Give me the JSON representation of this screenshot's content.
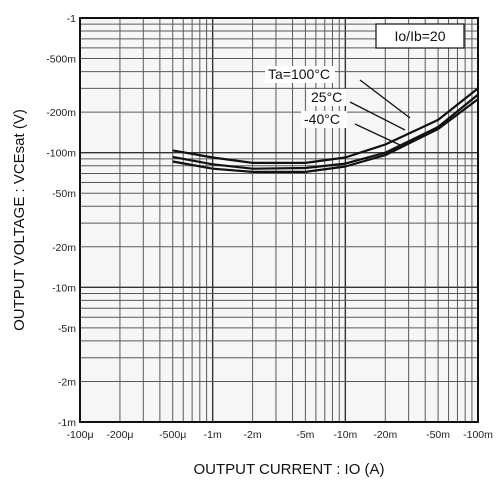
{
  "chart_data": {
    "type": "line",
    "xlabel": "OUTPUT CURRENT : IO (A)",
    "ylabel": "OUTPUT VOLTAGE : VCEsat (V)",
    "x_scale": "log",
    "y_scale": "log",
    "x_direction": "increasingly negative to the right",
    "y_direction": "increasingly negative downward (top = -1)",
    "xlim": [
      -0.0001,
      -0.1
    ],
    "ylim": [
      -0.001,
      -1
    ],
    "grid": true,
    "legend_position": "top-right",
    "annotation": "Io/Ib=20",
    "x_ticks": [
      {
        "value": -0.0001,
        "label": "-100μ"
      },
      {
        "value": -0.0002,
        "label": "-200μ"
      },
      {
        "value": -0.0005,
        "label": "-500μ"
      },
      {
        "value": -0.001,
        "label": "-1m"
      },
      {
        "value": -0.002,
        "label": "-2m"
      },
      {
        "value": -0.005,
        "label": "-5m"
      },
      {
        "value": -0.01,
        "label": "-10m"
      },
      {
        "value": -0.02,
        "label": "-20m"
      },
      {
        "value": -0.05,
        "label": "-50m"
      },
      {
        "value": -0.1,
        "label": "-100m"
      }
    ],
    "y_ticks": [
      {
        "value": -1,
        "label": "-1"
      },
      {
        "value": -0.5,
        "label": "-500m"
      },
      {
        "value": -0.2,
        "label": "-200m"
      },
      {
        "value": -0.1,
        "label": "-100m"
      },
      {
        "value": -0.05,
        "label": "-50m"
      },
      {
        "value": -0.02,
        "label": "-20m"
      },
      {
        "value": -0.01,
        "label": "-10m"
      },
      {
        "value": -0.005,
        "label": "-5m"
      },
      {
        "value": -0.002,
        "label": "-2m"
      },
      {
        "value": -0.001,
        "label": "-1m"
      }
    ],
    "series": [
      {
        "name": "Ta=100°C",
        "x": [
          -0.0005,
          -0.001,
          -0.002,
          -0.005,
          -0.01,
          -0.02,
          -0.05,
          -0.1
        ],
        "y": [
          -0.104,
          -0.092,
          -0.084,
          -0.084,
          -0.092,
          -0.115,
          -0.175,
          -0.3
        ]
      },
      {
        "name": "25°C",
        "x": [
          -0.0005,
          -0.001,
          -0.002,
          -0.005,
          -0.01,
          -0.02,
          -0.05,
          -0.1
        ],
        "y": [
          -0.093,
          -0.082,
          -0.076,
          -0.077,
          -0.083,
          -0.1,
          -0.155,
          -0.27
        ]
      },
      {
        "name": "-40°C",
        "x": [
          -0.0005,
          -0.001,
          -0.002,
          -0.005,
          -0.01,
          -0.02,
          -0.05,
          -0.1
        ],
        "y": [
          -0.086,
          -0.076,
          -0.072,
          -0.072,
          -0.079,
          -0.096,
          -0.15,
          -0.25
        ]
      }
    ]
  }
}
